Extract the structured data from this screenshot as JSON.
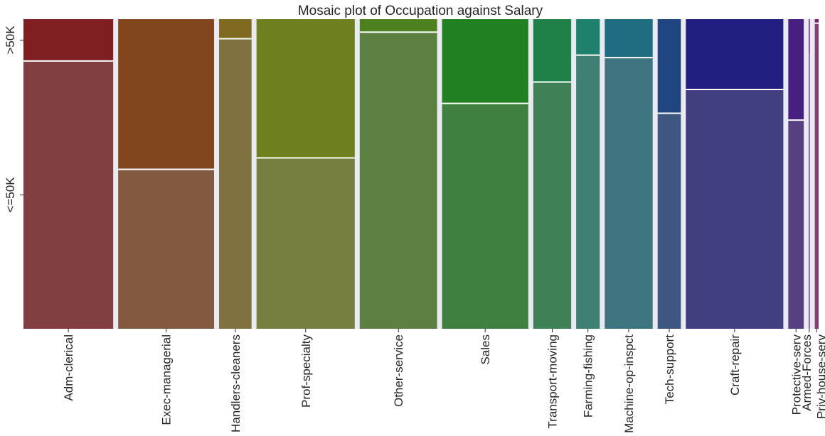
{
  "chart_data": {
    "type": "mosaic",
    "title": "Mosaic plot of Occupation against Salary",
    "xlabel": "",
    "ylabel": "",
    "y_categories": [
      ">50K",
      "<=50K"
    ],
    "legend": "none",
    "grid": false,
    "categories": [
      {
        "name": "Adm-clerical",
        "share": 0.116,
        "gt50k": 0.135,
        "color_top": "#7f1f22",
        "color_bottom": "#823f41"
      },
      {
        "name": "Exec-managerial",
        "share": 0.124,
        "gt50k": 0.485,
        "color_top": "#81461e",
        "color_bottom": "#835a40"
      },
      {
        "name": "Handlers-cleaners",
        "share": 0.042,
        "gt50k": 0.063,
        "color_top": "#806a1f",
        "color_bottom": "#807240"
      },
      {
        "name": "Prof-specialty",
        "share": 0.127,
        "gt50k": 0.448,
        "color_top": "#6d7f1f",
        "color_bottom": "#767f40"
      },
      {
        "name": "Other-service",
        "share": 0.1,
        "gt50k": 0.042,
        "color_top": "#4d801f",
        "color_bottom": "#5b8042"
      },
      {
        "name": "Sales",
        "share": 0.1115,
        "gt50k": 0.272,
        "color_top": "#21801f",
        "color_bottom": "#3f8040"
      },
      {
        "name": "Transport-moving",
        "share": 0.049,
        "gt50k": 0.203,
        "color_top": "#1f8048",
        "color_bottom": "#3f8057"
      },
      {
        "name": "Farming-fishing",
        "share": 0.0305,
        "gt50k": 0.116,
        "color_top": "#1f806d",
        "color_bottom": "#3f8075"
      },
      {
        "name": "Machine-op-inspct",
        "share": 0.062,
        "gt50k": 0.124,
        "color_top": "#1f6d80",
        "color_bottom": "#3f7580"
      },
      {
        "name": "Tech-support",
        "share": 0.03,
        "gt50k": 0.304,
        "color_top": "#1f4680",
        "color_bottom": "#3f5780"
      },
      {
        "name": "Craft-repair",
        "share": 0.126,
        "gt50k": 0.227,
        "color_top": "#211f80",
        "color_bottom": "#413f80"
      },
      {
        "name": "Protective-serv",
        "share": 0.02,
        "gt50k": 0.326,
        "color_top": "#461f80",
        "color_bottom": "#57407f"
      },
      {
        "name": "Armed-Forces",
        "share": 0.0004,
        "gt50k": 0.111,
        "color_top": "#6d1f80",
        "color_bottom": "#753f80"
      },
      {
        "name": "Priv-house-serv",
        "share": 0.005,
        "gt50k": 0.013,
        "color_top": "#801f6d",
        "color_bottom": "#803f75"
      }
    ]
  }
}
